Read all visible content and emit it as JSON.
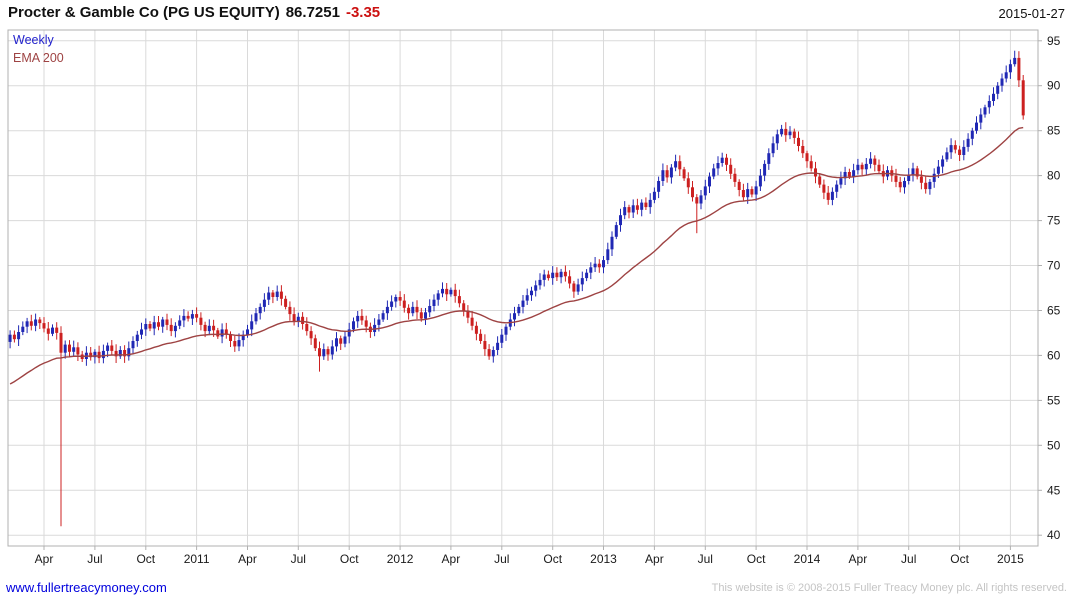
{
  "header": {
    "title": "Procter & Gamble Co (PG US EQUITY)",
    "price": "86.7251",
    "change": "-3.35",
    "date": "2015-01-27"
  },
  "legend": {
    "interval": "Weekly",
    "overlay": "EMA 200"
  },
  "footer": {
    "link": "www.fullertreacymoney.com",
    "copyright": "This website is © 2008-2015 Fuller Treacy Money plc. All rights reserved."
  },
  "chart_data": {
    "type": "candlestick",
    "title": "Procter & Gamble Co (PG US EQUITY)",
    "interval": "Weekly",
    "overlay": "EMA 200",
    "last_price": 86.7251,
    "change": -3.35,
    "as_of_date": "2015-01-27",
    "ylim": [
      38.8,
      96.2
    ],
    "y_ticks": [
      40,
      45,
      50,
      55,
      60,
      65,
      70,
      75,
      80,
      85,
      90,
      95
    ],
    "x_ticks": [
      {
        "i": 8,
        "label": "Apr"
      },
      {
        "i": 20,
        "label": "Jul"
      },
      {
        "i": 32,
        "label": "Oct"
      },
      {
        "i": 44,
        "label": "2011"
      },
      {
        "i": 56,
        "label": "Apr"
      },
      {
        "i": 68,
        "label": "Jul"
      },
      {
        "i": 80,
        "label": "Oct"
      },
      {
        "i": 92,
        "label": "2012"
      },
      {
        "i": 104,
        "label": "Apr"
      },
      {
        "i": 116,
        "label": "Jul"
      },
      {
        "i": 128,
        "label": "Oct"
      },
      {
        "i": 140,
        "label": "2013"
      },
      {
        "i": 152,
        "label": "Apr"
      },
      {
        "i": 164,
        "label": "Jul"
      },
      {
        "i": 176,
        "label": "Oct"
      },
      {
        "i": 188,
        "label": "2014"
      },
      {
        "i": 200,
        "label": "Apr"
      },
      {
        "i": 212,
        "label": "Jul"
      },
      {
        "i": 224,
        "label": "Oct"
      },
      {
        "i": 236,
        "label": "2015"
      }
    ],
    "first_open": 61.5,
    "closes": [
      62.3,
      61.8,
      62.6,
      63.2,
      63.8,
      63.3,
      64.0,
      63.6,
      63.0,
      62.4,
      63.1,
      62.5,
      60.3,
      61.2,
      60.4,
      60.9,
      60.1,
      59.6,
      60.3,
      59.8,
      60.4,
      59.7,
      60.5,
      61.1,
      60.5,
      59.9,
      60.6,
      59.9,
      60.8,
      61.6,
      62.3,
      62.9,
      63.5,
      63.0,
      63.7,
      63.2,
      64.0,
      63.4,
      62.7,
      63.3,
      63.9,
      64.4,
      64.1,
      64.6,
      64.2,
      63.4,
      62.7,
      63.3,
      62.8,
      62.1,
      62.9,
      62.3,
      61.6,
      61.0,
      61.7,
      62.3,
      62.9,
      63.8,
      64.7,
      65.4,
      66.2,
      67.0,
      66.5,
      67.1,
      66.3,
      65.4,
      64.6,
      63.8,
      64.3,
      63.5,
      62.7,
      61.9,
      60.8,
      59.9,
      60.7,
      60.1,
      61.0,
      61.9,
      61.3,
      62.1,
      62.9,
      63.8,
      64.4,
      63.9,
      63.2,
      62.6,
      63.4,
      64.0,
      64.7,
      65.4,
      66.0,
      66.5,
      66.1,
      65.3,
      64.7,
      65.4,
      64.8,
      64.1,
      64.8,
      65.5,
      66.2,
      66.9,
      67.4,
      66.8,
      67.3,
      66.6,
      65.8,
      65.0,
      64.2,
      63.3,
      62.4,
      61.6,
      60.7,
      59.9,
      60.6,
      61.4,
      62.3,
      63.2,
      64.0,
      64.7,
      65.4,
      66.1,
      66.7,
      67.2,
      67.8,
      68.4,
      69.0,
      68.6,
      69.2,
      68.7,
      69.3,
      68.8,
      68.0,
      67.1,
      67.9,
      68.6,
      69.2,
      69.8,
      70.2,
      69.8,
      70.6,
      71.8,
      73.2,
      74.5,
      75.6,
      76.5,
      75.9,
      76.7,
      76.2,
      77.0,
      76.5,
      77.3,
      78.2,
      79.4,
      80.6,
      79.8,
      80.9,
      81.6,
      80.7,
      79.7,
      78.7,
      77.6,
      76.9,
      77.8,
      78.8,
      79.9,
      80.8,
      81.4,
      82.0,
      81.2,
      80.2,
      79.3,
      78.4,
      77.6,
      78.5,
      77.9,
      78.8,
      80.0,
      81.3,
      82.5,
      83.6,
      84.6,
      85.2,
      84.5,
      84.9,
      84.2,
      83.3,
      82.5,
      81.6,
      80.8,
      79.9,
      79.0,
      78.1,
      77.3,
      78.2,
      79.0,
      79.7,
      80.4,
      79.9,
      80.6,
      81.2,
      80.7,
      81.3,
      81.9,
      81.2,
      80.5,
      79.9,
      80.6,
      80.0,
      79.3,
      78.7,
      79.4,
      80.1,
      80.8,
      79.9,
      79.2,
      78.5,
      79.3,
      80.2,
      81.0,
      81.8,
      82.6,
      83.4,
      82.9,
      82.3,
      83.2,
      84.1,
      85.0,
      85.9,
      86.8,
      87.6,
      88.3,
      89.1,
      90.0,
      90.8,
      91.5,
      92.4,
      93.1,
      90.6,
      86.7
    ],
    "special": {
      "12": {
        "low": 41.0
      },
      "73": {
        "low": 58.2
      },
      "162": {
        "low": 73.6
      },
      "237": {
        "high": 93.9
      }
    },
    "ema": {
      "label": "EMA 200",
      "seed": 56.5,
      "alpha": 0.055
    },
    "colors": {
      "up": "#2028b4",
      "down": "#cc2020",
      "ema": "#9e4343",
      "grid": "#dadada",
      "border": "#b0b0b0",
      "axis_text": "#1a1a1a",
      "title_text": "#111111",
      "change_text": "#cc1111",
      "interval_text": "#2222cc",
      "link_text": "#0000dd",
      "copyright_text": "#c4c4c4"
    }
  }
}
